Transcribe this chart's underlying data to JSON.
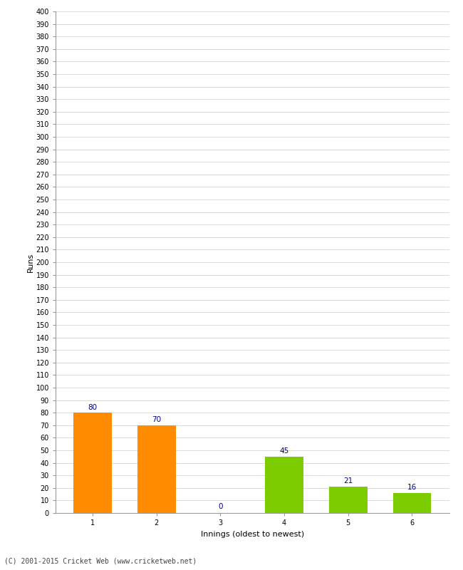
{
  "categories": [
    "1",
    "2",
    "3",
    "4",
    "5",
    "6"
  ],
  "values": [
    80,
    70,
    0,
    45,
    21,
    16
  ],
  "bar_colors": [
    "#ff8c00",
    "#ff8c00",
    "#cccccc",
    "#7ccc00",
    "#7ccc00",
    "#7ccc00"
  ],
  "bar3_color": "#dddddd",
  "xlabel": "Innings (oldest to newest)",
  "ylabel": "Runs",
  "ylim": [
    0,
    400
  ],
  "value_label_color": "#00008b",
  "value_label_fontsize": 7.5,
  "axis_label_fontsize": 8,
  "tick_fontsize": 7,
  "background_color": "#ffffff",
  "grid_color": "#cccccc",
  "footer": "(C) 2001-2015 Cricket Web (www.cricketweb.net)"
}
